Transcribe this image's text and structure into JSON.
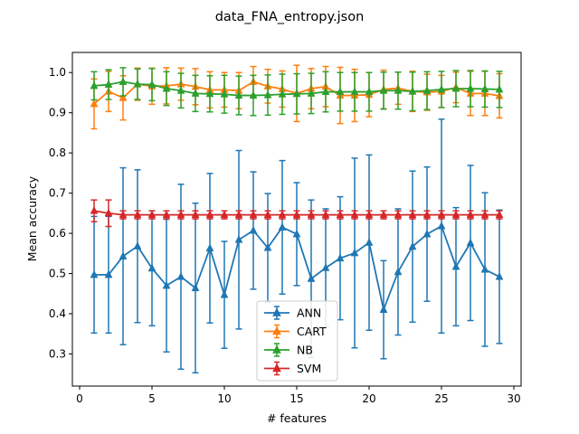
{
  "chart_data": {
    "type": "line",
    "title": "data_FNA_entropy.json",
    "xlabel": "# features",
    "ylabel": "Mean accuracy",
    "xlim": [
      -0.5,
      30.5
    ],
    "ylim": [
      0.22,
      1.05
    ],
    "xticks": [
      0,
      5,
      10,
      15,
      20,
      25,
      30
    ],
    "yticks": [
      0.3,
      0.4,
      0.5,
      0.6,
      0.7,
      0.8,
      0.9,
      1.0
    ],
    "ytick_labels": [
      "0.3",
      "0.4",
      "0.5",
      "0.6",
      "0.7",
      "0.8",
      "0.9",
      "1.0"
    ],
    "legend_position": "lower-center",
    "grid": false,
    "x": [
      1,
      2,
      3,
      4,
      5,
      6,
      7,
      8,
      9,
      10,
      11,
      12,
      13,
      14,
      15,
      16,
      17,
      18,
      19,
      20,
      21,
      22,
      23,
      24,
      25,
      26,
      27,
      28,
      29
    ],
    "series": [
      {
        "name": "ANN",
        "color": "#1f77b4",
        "marker": "triangle",
        "values": [
          0.497,
          0.497,
          0.543,
          0.568,
          0.513,
          0.47,
          0.492,
          0.464,
          0.563,
          0.447,
          0.584,
          0.607,
          0.564,
          0.615,
          0.598,
          0.487,
          0.514,
          0.538,
          0.551,
          0.577,
          0.41,
          0.504,
          0.567,
          0.598,
          0.618,
          0.517,
          0.576,
          0.51,
          0.492
        ],
        "err": [
          0.145,
          0.145,
          0.22,
          0.19,
          0.143,
          0.165,
          0.23,
          0.211,
          0.186,
          0.133,
          0.222,
          0.146,
          0.135,
          0.166,
          0.128,
          0.196,
          0.147,
          0.153,
          0.236,
          0.218,
          0.122,
          0.157,
          0.188,
          0.167,
          0.266,
          0.147,
          0.193,
          0.191,
          0.166
        ]
      },
      {
        "name": "CART",
        "color": "#ff7f0e",
        "marker": "triangle",
        "values": [
          0.922,
          0.953,
          0.937,
          0.971,
          0.966,
          0.967,
          0.971,
          0.965,
          0.957,
          0.957,
          0.955,
          0.977,
          0.966,
          0.959,
          0.948,
          0.96,
          0.965,
          0.943,
          0.943,
          0.945,
          0.958,
          0.961,
          0.953,
          0.951,
          0.953,
          0.963,
          0.948,
          0.948,
          0.942
        ],
        "err": [
          0.062,
          0.05,
          0.055,
          0.04,
          0.045,
          0.045,
          0.04,
          0.045,
          0.045,
          0.043,
          0.045,
          0.038,
          0.042,
          0.045,
          0.07,
          0.05,
          0.05,
          0.07,
          0.065,
          0.055,
          0.048,
          0.04,
          0.05,
          0.045,
          0.04,
          0.038,
          0.055,
          0.055,
          0.055
        ]
      },
      {
        "name": "NB",
        "color": "#2ca02c",
        "marker": "triangle",
        "values": [
          0.967,
          0.97,
          0.977,
          0.971,
          0.97,
          0.96,
          0.955,
          0.948,
          0.947,
          0.946,
          0.943,
          0.943,
          0.944,
          0.946,
          0.947,
          0.948,
          0.952,
          0.952,
          0.952,
          0.952,
          0.955,
          0.955,
          0.953,
          0.955,
          0.958,
          0.96,
          0.96,
          0.959,
          0.958
        ],
        "err": [
          0.035,
          0.037,
          0.035,
          0.038,
          0.04,
          0.042,
          0.043,
          0.045,
          0.045,
          0.047,
          0.048,
          0.05,
          0.05,
          0.05,
          0.05,
          0.05,
          0.05,
          0.048,
          0.048,
          0.048,
          0.046,
          0.046,
          0.048,
          0.047,
          0.045,
          0.045,
          0.045,
          0.045,
          0.045
        ]
      },
      {
        "name": "SVM",
        "color": "#d62728",
        "marker": "triangle",
        "values": [
          0.656,
          0.65,
          0.646,
          0.646,
          0.646,
          0.646,
          0.646,
          0.646,
          0.646,
          0.646,
          0.646,
          0.646,
          0.646,
          0.646,
          0.646,
          0.646,
          0.646,
          0.646,
          0.646,
          0.646,
          0.646,
          0.646,
          0.646,
          0.646,
          0.646,
          0.646,
          0.646,
          0.646,
          0.646
        ],
        "err": [
          0.027,
          0.033,
          0.01,
          0.01,
          0.01,
          0.01,
          0.01,
          0.01,
          0.01,
          0.01,
          0.01,
          0.01,
          0.01,
          0.01,
          0.01,
          0.01,
          0.01,
          0.01,
          0.01,
          0.01,
          0.01,
          0.01,
          0.01,
          0.01,
          0.01,
          0.01,
          0.01,
          0.01,
          0.01
        ]
      }
    ]
  }
}
